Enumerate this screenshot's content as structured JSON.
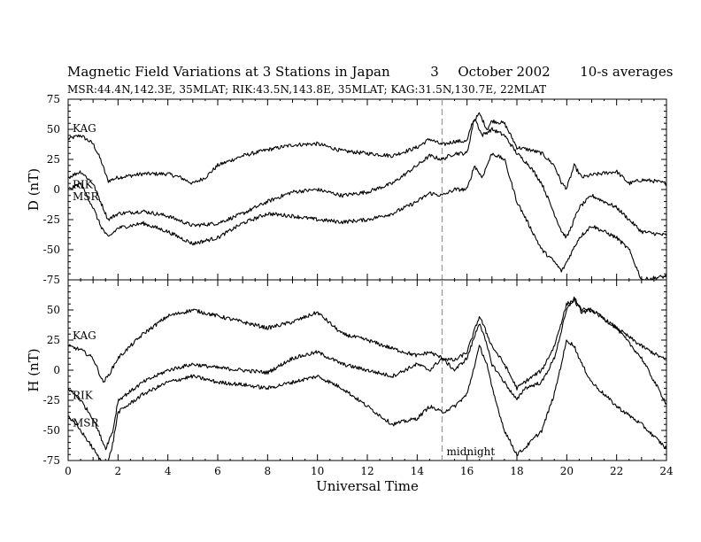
{
  "header": {
    "title": "Magnetic Field Variations at 3 Stations in Japan",
    "date_day": "3",
    "date_rest": "October 2002",
    "averaging": "10-s averages",
    "subtitle": "MSR:44.4N,142.3E, 35MLAT;  RIK:43.5N,143.8E, 35MLAT;  KAG:31.5N,130.7E, 22MLAT"
  },
  "chart_data": [
    {
      "type": "line",
      "panel": "top",
      "ylabel": "D (nT)",
      "ylim": [
        -75,
        75
      ],
      "yticks": [
        75,
        50,
        25,
        0,
        -25,
        -50,
        -75
      ],
      "xlim": [
        0,
        24
      ],
      "xticks": [
        0,
        2,
        4,
        6,
        8,
        10,
        12,
        14,
        16,
        18,
        20,
        22,
        24
      ],
      "series": [
        {
          "name": "KAG",
          "x": [
            0,
            0.5,
            1.0,
            1.3,
            1.6,
            2,
            3,
            4,
            4.5,
            5.0,
            5.5,
            6,
            7,
            8,
            9,
            10,
            11,
            12,
            13,
            14,
            14.5,
            15,
            15.5,
            16,
            16.2,
            16.5,
            16.8,
            17,
            17.5,
            18,
            18.5,
            19,
            19.5,
            19.8,
            20,
            20.3,
            20.6,
            21,
            22,
            22.5,
            23,
            23.5,
            24
          ],
          "y": [
            42,
            45,
            38,
            25,
            7,
            10,
            13,
            13,
            10,
            5,
            10,
            20,
            28,
            33,
            37,
            38,
            32,
            30,
            28,
            35,
            42,
            37,
            40,
            40,
            55,
            63,
            50,
            57,
            55,
            35,
            33,
            30,
            20,
            5,
            1,
            20,
            10,
            12,
            15,
            5,
            8,
            7,
            5
          ]
        },
        {
          "name": "RIK",
          "x": [
            0,
            0.5,
            1.0,
            1.3,
            1.6,
            2,
            3,
            4,
            5,
            6,
            7,
            8,
            9,
            10,
            11,
            12,
            13,
            14,
            14.5,
            15,
            15.5,
            16,
            16.3,
            16.6,
            17,
            17.5,
            18,
            18.5,
            19,
            19.5,
            19.8,
            20,
            20.5,
            21,
            22,
            22.5,
            23,
            24
          ],
          "y": [
            10,
            15,
            5,
            -10,
            -25,
            -20,
            -18,
            -22,
            -30,
            -28,
            -20,
            -10,
            -2,
            0,
            -5,
            -2,
            5,
            20,
            28,
            25,
            30,
            30,
            60,
            45,
            50,
            45,
            30,
            20,
            5,
            -20,
            -35,
            -40,
            -15,
            -5,
            -15,
            -25,
            -35,
            -38
          ]
        },
        {
          "name": "MSR",
          "x": [
            0,
            0.5,
            1.0,
            1.3,
            1.6,
            2,
            3,
            4,
            5,
            6,
            7,
            8,
            9,
            10,
            11,
            12,
            13,
            14,
            14.5,
            15,
            15.5,
            16,
            16.3,
            16.6,
            17,
            17.5,
            18,
            18.5,
            19,
            19.5,
            19.8,
            20,
            20.5,
            21,
            22,
            22.5,
            23,
            24
          ],
          "y": [
            0,
            5,
            -15,
            -30,
            -40,
            -32,
            -28,
            -35,
            -45,
            -40,
            -28,
            -20,
            -22,
            -25,
            -27,
            -25,
            -20,
            -10,
            -3,
            -5,
            0,
            0,
            20,
            10,
            30,
            25,
            -10,
            -30,
            -50,
            -60,
            -68,
            -60,
            -40,
            -30,
            -40,
            -50,
            -75,
            -72
          ]
        }
      ]
    },
    {
      "type": "line",
      "panel": "bottom",
      "ylabel": "H (nT)",
      "xlabel": "Universal Time",
      "ylim": [
        -75,
        75
      ],
      "yticks": [
        50,
        25,
        0,
        -25,
        -50,
        -75
      ],
      "xlim": [
        0,
        24
      ],
      "xticks": [
        0,
        2,
        4,
        6,
        8,
        10,
        12,
        14,
        16,
        18,
        20,
        22,
        24
      ],
      "annotation": "midnight",
      "marker_x": 15,
      "series": [
        {
          "name": "KAG",
          "x": [
            0,
            0.5,
            1.0,
            1.3,
            1.4,
            1.6,
            2,
            3,
            4,
            5,
            6,
            7,
            8,
            9,
            10,
            11,
            12,
            13,
            14,
            14.5,
            15,
            15.5,
            16,
            16.5,
            16.8,
            17,
            17.5,
            18,
            18.3,
            19,
            19.5,
            20,
            20.3,
            20.6,
            21,
            22,
            23,
            24
          ],
          "y": [
            20,
            17,
            10,
            -5,
            -10,
            -5,
            10,
            30,
            45,
            50,
            45,
            40,
            35,
            40,
            48,
            30,
            25,
            18,
            12,
            15,
            10,
            8,
            15,
            45,
            30,
            20,
            5,
            -15,
            -10,
            0,
            20,
            55,
            58,
            48,
            50,
            35,
            20,
            8
          ]
        },
        {
          "name": "RIK",
          "x": [
            0,
            0.5,
            1.0,
            1.3,
            1.5,
            1.8,
            2,
            3,
            4,
            5,
            6,
            7,
            8,
            9,
            10,
            11,
            12,
            13,
            14,
            14.5,
            15,
            15.5,
            16,
            16.5,
            16.8,
            17,
            17.5,
            18,
            18.3,
            19,
            19.5,
            20,
            20.3,
            20.6,
            21,
            22,
            23,
            24
          ],
          "y": [
            -15,
            -25,
            -40,
            -55,
            -65,
            -50,
            -25,
            -10,
            0,
            5,
            2,
            0,
            -2,
            10,
            15,
            5,
            0,
            -5,
            5,
            0,
            10,
            0,
            10,
            40,
            20,
            5,
            -10,
            -25,
            -15,
            -10,
            10,
            50,
            60,
            50,
            50,
            35,
            10,
            -28
          ]
        },
        {
          "name": "MSR",
          "x": [
            0,
            0.5,
            1.0,
            1.3,
            1.5,
            1.8,
            2,
            3,
            4,
            5,
            6,
            7,
            8,
            9,
            10,
            11,
            12,
            13,
            14,
            14.5,
            15,
            15.5,
            16,
            16.5,
            16.8,
            17,
            17.5,
            18,
            18.3,
            19,
            19.5,
            20,
            20.3,
            20.6,
            21,
            22,
            23,
            24
          ],
          "y": [
            -38,
            -50,
            -65,
            -75,
            -85,
            -60,
            -35,
            -20,
            -10,
            -5,
            -10,
            -12,
            -15,
            -10,
            -5,
            -15,
            -30,
            -45,
            -40,
            -30,
            -35,
            -30,
            -20,
            20,
            5,
            -15,
            -50,
            -70,
            -65,
            -50,
            -20,
            25,
            20,
            5,
            -10,
            -30,
            -45,
            -65
          ]
        }
      ]
    }
  ],
  "legend_labels": {
    "top": [
      "KAG",
      "RIK",
      "MSR"
    ],
    "bottom": [
      "KAG",
      "RIK",
      "MSR"
    ]
  }
}
